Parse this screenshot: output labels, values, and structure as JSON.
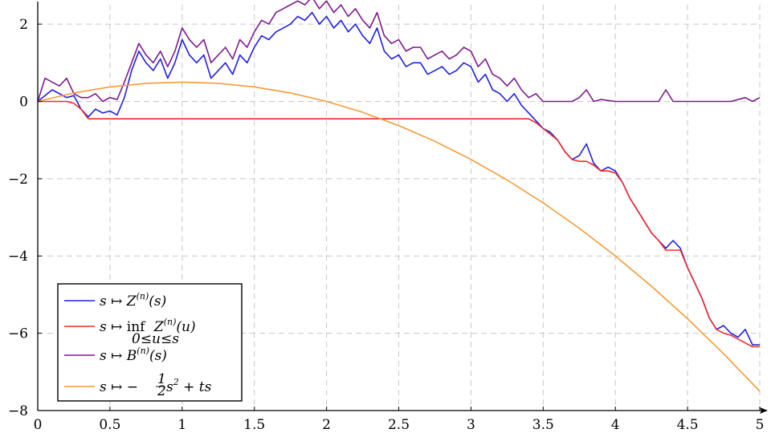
{
  "chart_data": {
    "type": "line",
    "title": "",
    "xlabel": "",
    "ylabel": "",
    "xlim": [
      0,
      5
    ],
    "ylim": [
      -8,
      2.5
    ],
    "grid": true,
    "legend_position": "bottom-left",
    "x_ticks": [
      0,
      0.5,
      1,
      1.5,
      2,
      2.5,
      3,
      3.5,
      4,
      4.5,
      5
    ],
    "y_ticks": [
      -8,
      -6,
      -4,
      -2,
      0,
      2
    ],
    "x_tick_labels": [
      "0",
      "0.5",
      "1",
      "1.5",
      "2",
      "2.5",
      "3",
      "3.5",
      "4",
      "4.5",
      "5"
    ],
    "y_tick_labels": [
      "−8",
      "−6",
      "−4",
      "−2",
      "0",
      "2"
    ],
    "series": [
      {
        "name": "s ↦ Z(n)(s)",
        "color": "#1f1fe6",
        "x": [
          0,
          0.1,
          0.2,
          0.25,
          0.3,
          0.35,
          0.4,
          0.45,
          0.5,
          0.55,
          0.6,
          0.65,
          0.7,
          0.75,
          0.8,
          0.85,
          0.9,
          0.95,
          1.0,
          1.05,
          1.1,
          1.15,
          1.2,
          1.25,
          1.3,
          1.35,
          1.4,
          1.45,
          1.5,
          1.55,
          1.6,
          1.65,
          1.7,
          1.75,
          1.8,
          1.85,
          1.9,
          1.95,
          2.0,
          2.05,
          2.1,
          2.15,
          2.2,
          2.25,
          2.3,
          2.35,
          2.4,
          2.45,
          2.5,
          2.55,
          2.6,
          2.65,
          2.7,
          2.75,
          2.8,
          2.85,
          2.9,
          2.95,
          3.0,
          3.05,
          3.1,
          3.15,
          3.2,
          3.25,
          3.3,
          3.35,
          3.4,
          3.45,
          3.5,
          3.55,
          3.6,
          3.65,
          3.7,
          3.75,
          3.8,
          3.85,
          3.9,
          3.95,
          4.0,
          4.05,
          4.1,
          4.15,
          4.2,
          4.25,
          4.3,
          4.35,
          4.4,
          4.45,
          4.5,
          4.55,
          4.6,
          4.65,
          4.7,
          4.75,
          4.8,
          4.85,
          4.9,
          4.95,
          5.0
        ],
        "y": [
          0,
          0.3,
          0.1,
          0.15,
          -0.2,
          -0.4,
          -0.2,
          -0.3,
          -0.25,
          -0.35,
          0.1,
          0.8,
          1.3,
          1.0,
          0.8,
          1.1,
          0.6,
          1.0,
          1.6,
          1.2,
          1.0,
          1.2,
          0.6,
          0.8,
          1.0,
          0.7,
          1.2,
          1.0,
          1.4,
          1.7,
          1.6,
          1.8,
          1.9,
          2.0,
          2.2,
          2.1,
          2.3,
          2.0,
          2.2,
          1.9,
          2.1,
          1.8,
          2.0,
          1.7,
          1.5,
          1.9,
          1.3,
          1.1,
          1.2,
          0.9,
          1.0,
          1.0,
          0.7,
          0.8,
          0.9,
          0.7,
          0.8,
          1.0,
          0.9,
          0.5,
          0.7,
          0.3,
          0.2,
          0.0,
          0.2,
          -0.1,
          -0.3,
          -0.5,
          -0.7,
          -0.8,
          -1.0,
          -1.3,
          -1.5,
          -1.4,
          -1.1,
          -1.6,
          -1.8,
          -1.7,
          -1.8,
          -2.1,
          -2.5,
          -2.8,
          -3.1,
          -3.4,
          -3.6,
          -3.8,
          -3.6,
          -3.8,
          -4.3,
          -4.7,
          -5.1,
          -5.6,
          -5.9,
          -5.8,
          -6.0,
          -6.1,
          -5.9,
          -6.3,
          -6.3
        ]
      },
      {
        "name": "s ↦ inf 0≤u≤s Z(n)(u)",
        "color": "#f02b2b",
        "x": [
          0,
          0.1,
          0.2,
          0.25,
          0.3,
          0.35,
          3.4,
          3.45,
          3.5,
          3.55,
          3.6,
          3.65,
          3.7,
          3.75,
          3.8,
          3.85,
          3.9,
          3.95,
          4.0,
          4.05,
          4.1,
          4.15,
          4.2,
          4.25,
          4.3,
          4.35,
          4.4,
          4.45,
          4.5,
          4.55,
          4.6,
          4.65,
          4.7,
          4.75,
          4.8,
          4.85,
          4.9,
          4.95,
          5.0
        ],
        "y": [
          0,
          0,
          0,
          -0.05,
          -0.2,
          -0.45,
          -0.45,
          -0.55,
          -0.7,
          -0.85,
          -1.0,
          -1.3,
          -1.5,
          -1.55,
          -1.55,
          -1.65,
          -1.8,
          -1.8,
          -1.85,
          -2.1,
          -2.5,
          -2.8,
          -3.1,
          -3.4,
          -3.6,
          -3.85,
          -3.85,
          -3.85,
          -4.3,
          -4.7,
          -5.1,
          -5.6,
          -5.9,
          -6.0,
          -6.05,
          -6.15,
          -6.25,
          -6.35,
          -6.35
        ]
      },
      {
        "name": "s ↦ B(n)(s)",
        "color": "#7d1a8c",
        "x": [
          0,
          0.05,
          0.1,
          0.15,
          0.2,
          0.25,
          0.3,
          0.35,
          0.4,
          0.45,
          0.5,
          0.55,
          0.6,
          0.65,
          0.7,
          0.75,
          0.8,
          0.85,
          0.9,
          0.95,
          1.0,
          1.05,
          1.1,
          1.15,
          1.2,
          1.25,
          1.3,
          1.35,
          1.4,
          1.45,
          1.5,
          1.55,
          1.6,
          1.65,
          1.7,
          1.75,
          1.8,
          1.85,
          1.9,
          1.95,
          2.0,
          2.05,
          2.1,
          2.15,
          2.2,
          2.25,
          2.3,
          2.35,
          2.4,
          2.45,
          2.5,
          2.55,
          2.6,
          2.65,
          2.7,
          2.75,
          2.8,
          2.85,
          2.9,
          2.95,
          3.0,
          3.05,
          3.1,
          3.15,
          3.2,
          3.25,
          3.3,
          3.35,
          3.4,
          3.45,
          3.5,
          3.6,
          3.7,
          3.75,
          3.8,
          3.85,
          3.9,
          4.0,
          4.1,
          4.2,
          4.3,
          4.35,
          4.4,
          4.5,
          4.6,
          4.7,
          4.8,
          4.9,
          4.95,
          5.0
        ],
        "y": [
          0,
          0.6,
          0.5,
          0.4,
          0.6,
          0.2,
          0.1,
          0.1,
          0.2,
          0.0,
          0.1,
          0.05,
          0.5,
          1.0,
          1.5,
          1.2,
          1.0,
          1.3,
          0.9,
          1.3,
          1.9,
          1.6,
          1.4,
          1.6,
          1.0,
          1.2,
          1.4,
          1.1,
          1.6,
          1.4,
          1.8,
          2.1,
          2.0,
          2.3,
          2.4,
          2.5,
          2.6,
          2.5,
          2.7,
          2.4,
          2.6,
          2.3,
          2.5,
          2.2,
          2.4,
          2.1,
          1.9,
          2.3,
          1.7,
          1.5,
          1.6,
          1.3,
          1.4,
          1.4,
          1.1,
          1.2,
          1.3,
          1.1,
          1.2,
          1.4,
          1.3,
          0.9,
          1.1,
          0.7,
          0.6,
          0.4,
          0.6,
          0.3,
          0.1,
          0.2,
          0.0,
          0.0,
          0.0,
          0.1,
          0.3,
          0.0,
          0.05,
          0.0,
          0.0,
          0.0,
          0.0,
          0.3,
          0.0,
          0.0,
          0.0,
          0.0,
          0.0,
          0.1,
          0.0,
          0.1
        ]
      },
      {
        "name": "s ↦ −½s² + ts",
        "color": "#f79a35",
        "function": "-0.5*s^2 + s",
        "x": [
          0,
          0.25,
          0.5,
          0.75,
          1.0,
          1.25,
          1.5,
          1.75,
          2.0,
          2.25,
          2.5,
          2.75,
          3.0,
          3.25,
          3.5,
          3.75,
          4.0,
          4.25,
          4.5,
          4.75,
          5.0
        ],
        "y": [
          0,
          0.219,
          0.375,
          0.469,
          0.5,
          0.469,
          0.375,
          0.219,
          0,
          -0.281,
          -0.625,
          -1.031,
          -1.5,
          -2.031,
          -2.625,
          -3.281,
          -4.0,
          -4.781,
          -5.625,
          -6.531,
          -7.5
        ]
      }
    ]
  },
  "legend": {
    "z_label": "s ↦ Z",
    "z_sup": "(n)",
    "z_arg": "(s)",
    "inf_prefix": "s ↦",
    "inf_word": "inf",
    "inf_sub": "0≤u≤s",
    "inf_body": "Z",
    "inf_sup": "(n)",
    "inf_arg": "(u)",
    "b_label": "s ↦ B",
    "b_sup": "(n)",
    "b_arg": "(s)",
    "p_label": "s ↦ −",
    "p_num": "1",
    "p_den": "2",
    "p_tail": "s",
    "p_exp": "2",
    "p_end": " + ts"
  }
}
